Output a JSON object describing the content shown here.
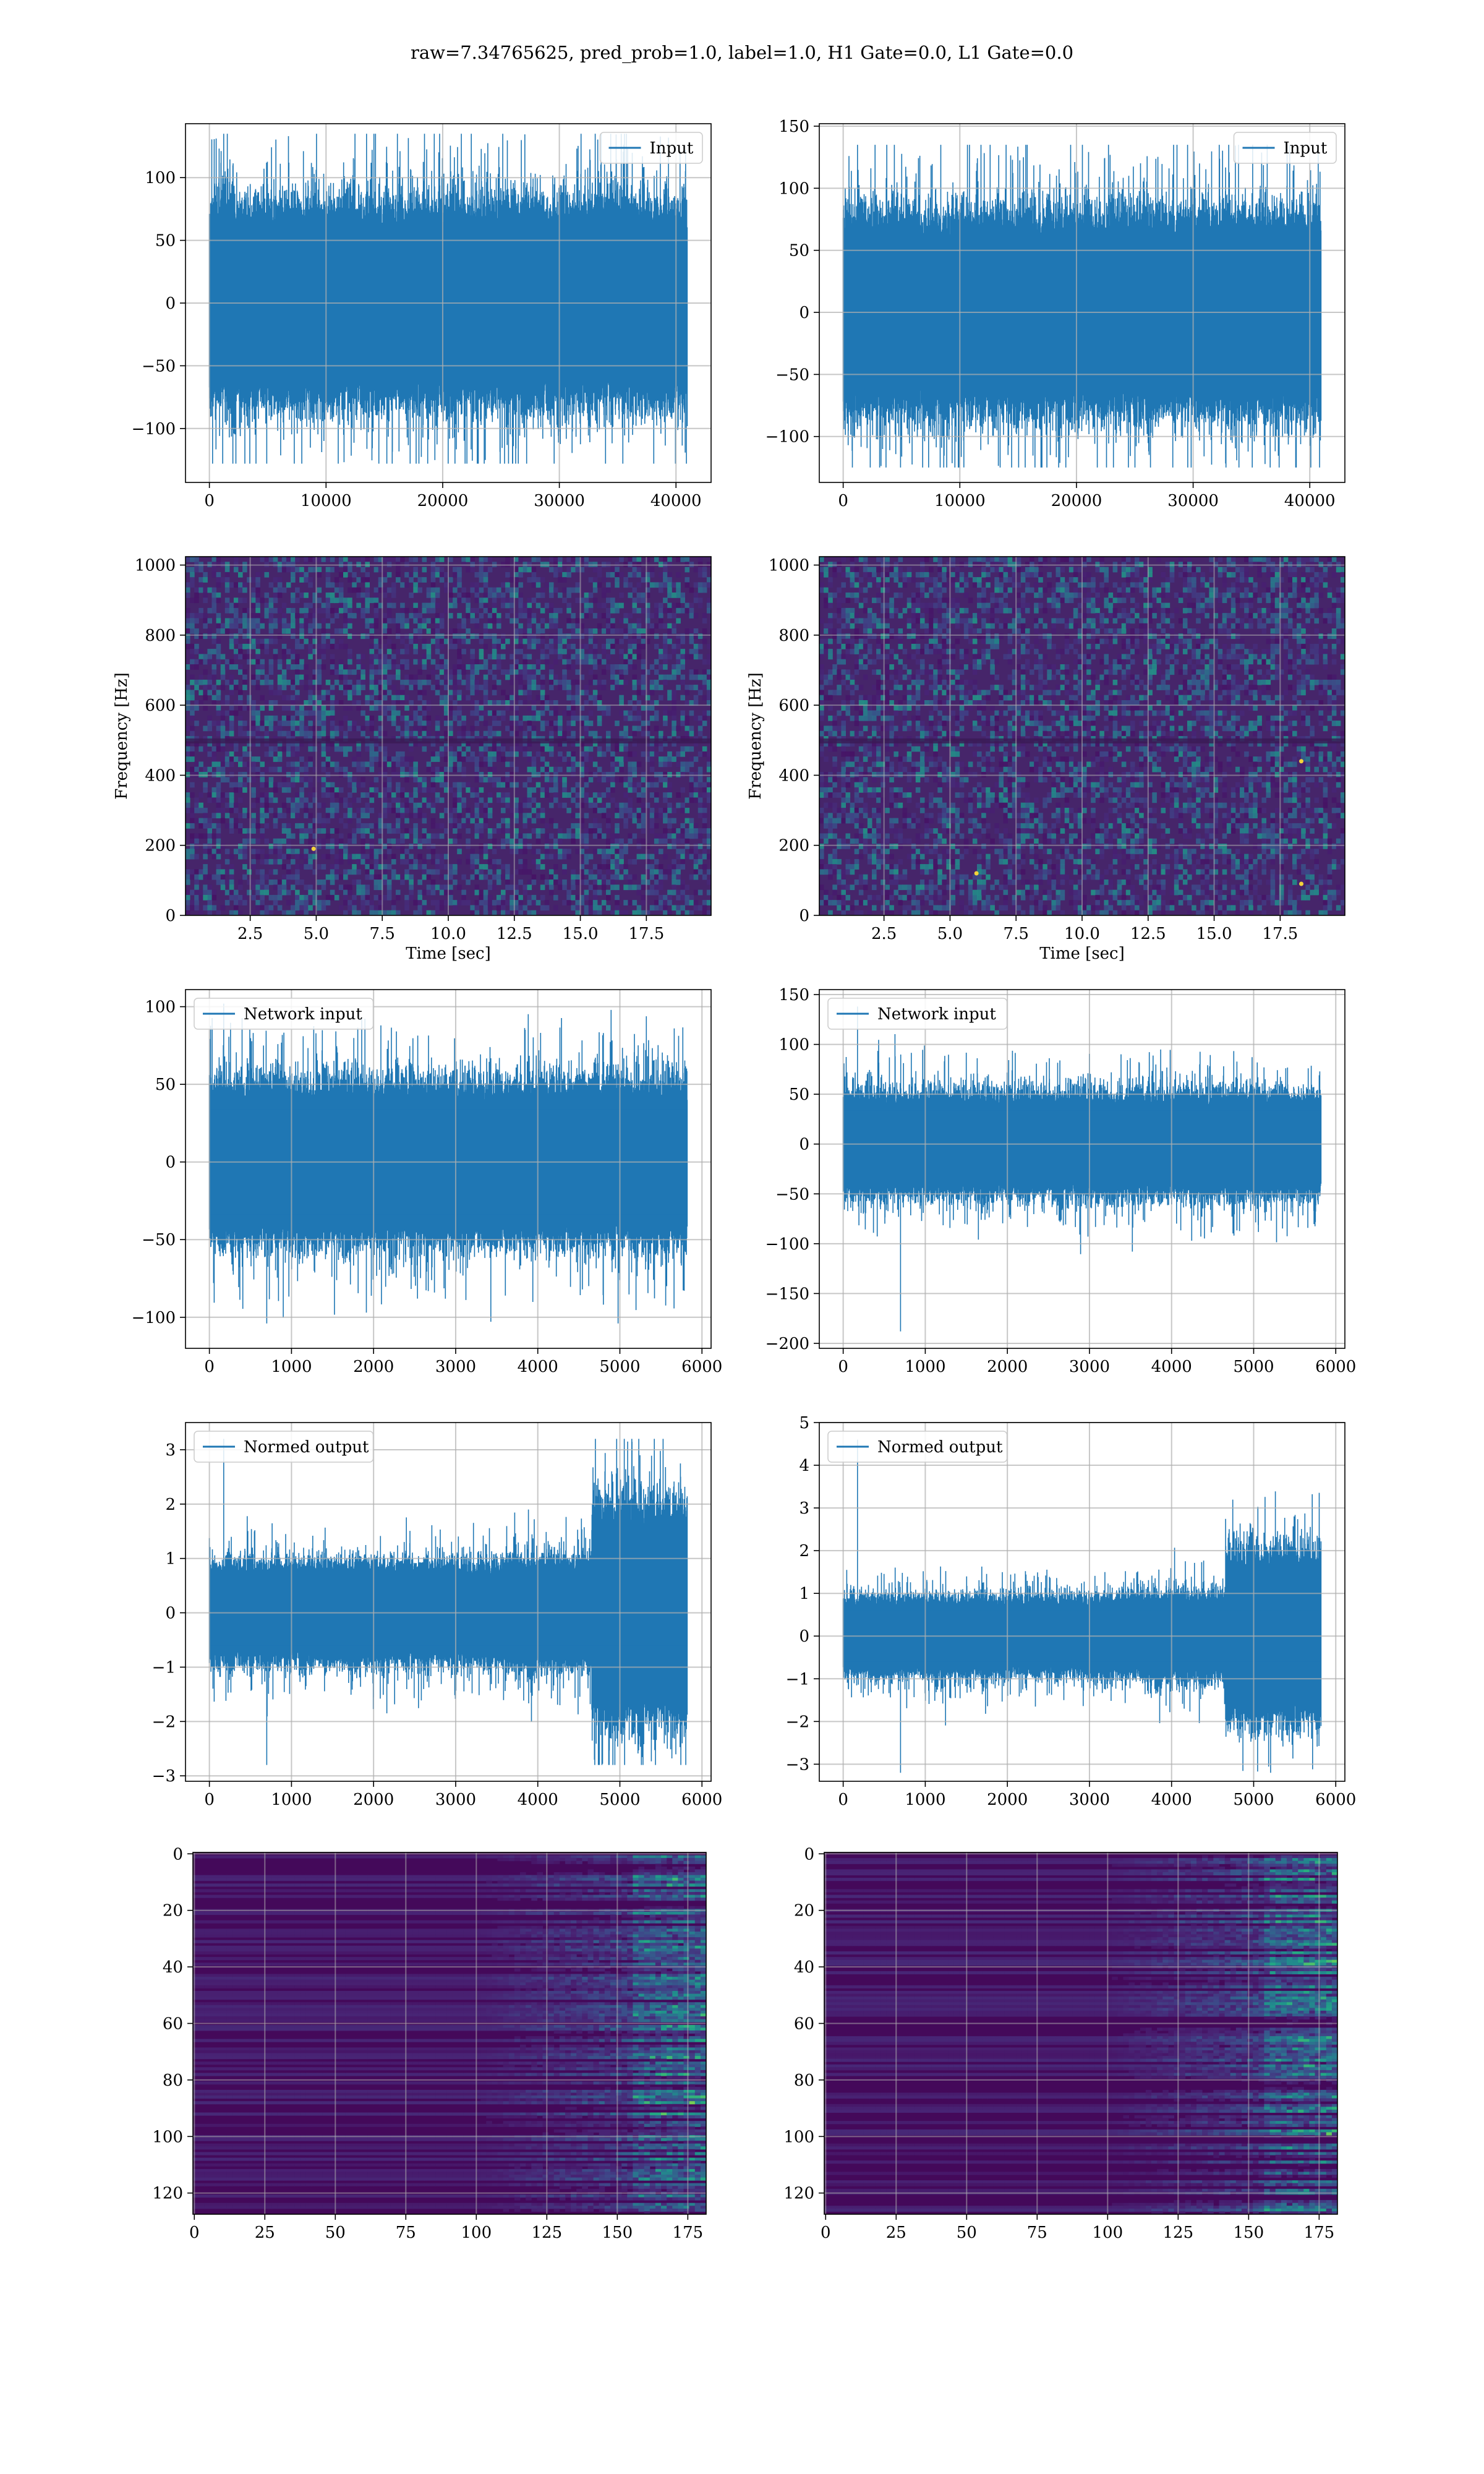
{
  "figure": {
    "title": "raw=7.34765625, pred_prob=1.0, label=1.0, H1 Gate=0.0, L1 Gate=0.0"
  },
  "chart_data": [
    {
      "id": "input-h1",
      "type": "line",
      "title": "",
      "xlabel": "",
      "ylabel": "",
      "series": [
        {
          "name": "Input",
          "color": "#1f77b4",
          "n": 40960,
          "amplitude_typical": 70,
          "peak_max": 135,
          "peak_min": -128
        }
      ],
      "xlim": [
        -2048,
        43008
      ],
      "ylim": [
        -143,
        143
      ],
      "xticks": [
        0,
        10000,
        20000,
        30000,
        40000
      ],
      "xtick_labels": [
        "0",
        "10000",
        "20000",
        "30000",
        "40000"
      ],
      "yticks": [
        -100,
        -50,
        0,
        50,
        100
      ],
      "ytick_labels": [
        "−100",
        "−50",
        "0",
        "50",
        "100"
      ],
      "legend": "top-right",
      "grid": true
    },
    {
      "id": "input-l1",
      "type": "line",
      "title": "",
      "xlabel": "",
      "ylabel": "",
      "series": [
        {
          "name": "Input",
          "color": "#1f77b4",
          "n": 40960,
          "amplitude_typical": 70,
          "peak_max": 135,
          "peak_min": -125
        }
      ],
      "xlim": [
        -2048,
        43008
      ],
      "ylim": [
        -137,
        152
      ],
      "xticks": [
        0,
        10000,
        20000,
        30000,
        40000
      ],
      "xtick_labels": [
        "0",
        "10000",
        "20000",
        "30000",
        "40000"
      ],
      "yticks": [
        -100,
        -50,
        0,
        50,
        100,
        150
      ],
      "ytick_labels": [
        "−100",
        "−50",
        "0",
        "50",
        "100",
        "150"
      ],
      "legend": "top-right",
      "grid": true
    },
    {
      "id": "spectrogram-h1",
      "type": "heatmap",
      "title": "",
      "xlabel": "Time [sec]",
      "ylabel": "Frequency [Hz]",
      "colormap": "viridis",
      "xlim": [
        0.05,
        19.95
      ],
      "ylim": [
        0,
        1024
      ],
      "xticks": [
        2.5,
        5,
        7.5,
        10,
        12.5,
        15,
        17.5
      ],
      "xtick_labels": [
        "2.5",
        "5.0",
        "7.5",
        "10.0",
        "12.5",
        "15.0",
        "17.5"
      ],
      "yticks": [
        0,
        200,
        400,
        600,
        800,
        1000
      ],
      "ytick_labels": [
        "0",
        "200",
        "400",
        "600",
        "800",
        "1000"
      ],
      "grid": true
    },
    {
      "id": "spectrogram-l1",
      "type": "heatmap",
      "title": "",
      "xlabel": "Time [sec]",
      "ylabel": "Frequency [Hz]",
      "colormap": "viridis",
      "xlim": [
        0.05,
        19.95
      ],
      "ylim": [
        0,
        1024
      ],
      "xticks": [
        2.5,
        5,
        7.5,
        10,
        12.5,
        15,
        17.5
      ],
      "xtick_labels": [
        "2.5",
        "5.0",
        "7.5",
        "10.0",
        "12.5",
        "15.0",
        "17.5"
      ],
      "yticks": [
        0,
        200,
        400,
        600,
        800,
        1000
      ],
      "ytick_labels": [
        "0",
        "200",
        "400",
        "600",
        "800",
        "1000"
      ],
      "grid": true
    },
    {
      "id": "network-input-h1",
      "type": "line",
      "title": "",
      "xlabel": "",
      "ylabel": "",
      "series": [
        {
          "name": "Network input",
          "color": "#1f77b4",
          "n": 5820,
          "amplitude_typical": 45,
          "peak_max": 102,
          "peak_min": -104
        }
      ],
      "xlim": [
        -291,
        6111
      ],
      "ylim": [
        -120,
        111
      ],
      "xticks": [
        0,
        1000,
        2000,
        3000,
        4000,
        5000,
        6000
      ],
      "xtick_labels": [
        "0",
        "1000",
        "2000",
        "3000",
        "4000",
        "5000",
        "6000"
      ],
      "yticks": [
        -100,
        -50,
        0,
        50,
        100
      ],
      "ytick_labels": [
        "−100",
        "−50",
        "0",
        "50",
        "100"
      ],
      "legend": "top-left",
      "grid": true
    },
    {
      "id": "network-input-l1",
      "type": "line",
      "title": "",
      "xlabel": "",
      "ylabel": "",
      "series": [
        {
          "name": "Network input",
          "color": "#1f77b4",
          "n": 5820,
          "amplitude_typical": 45,
          "peak_max": 138,
          "peak_min": -188
        }
      ],
      "xlim": [
        -291,
        6111
      ],
      "ylim": [
        -205,
        155
      ],
      "xticks": [
        0,
        1000,
        2000,
        3000,
        4000,
        5000,
        6000
      ],
      "xtick_labels": [
        "0",
        "1000",
        "2000",
        "3000",
        "4000",
        "5000",
        "6000"
      ],
      "yticks": [
        -200,
        -150,
        -100,
        -50,
        0,
        50,
        100,
        150
      ],
      "ytick_labels": [
        "−200",
        "−150",
        "−100",
        "−50",
        "0",
        "50",
        "100",
        "150"
      ],
      "legend": "top-left",
      "grid": true
    },
    {
      "id": "normed-output-h1",
      "type": "line",
      "title": "",
      "xlabel": "",
      "ylabel": "",
      "series": [
        {
          "name": "Normed output",
          "color": "#1f77b4",
          "n": 5820,
          "amplitude_typical": 0.8,
          "peak_max": 3.2,
          "peak_min": -2.8
        }
      ],
      "xlim": [
        -291,
        6111
      ],
      "ylim": [
        -3.1,
        3.5
      ],
      "xticks": [
        0,
        1000,
        2000,
        3000,
        4000,
        5000,
        6000
      ],
      "xtick_labels": [
        "0",
        "1000",
        "2000",
        "3000",
        "4000",
        "5000",
        "6000"
      ],
      "yticks": [
        -3,
        -2,
        -1,
        0,
        1,
        2,
        3
      ],
      "ytick_labels": [
        "−3",
        "−2",
        "−1",
        "0",
        "1",
        "2",
        "3"
      ],
      "legend": "top-left",
      "grid": true
    },
    {
      "id": "normed-output-l1",
      "type": "line",
      "title": "",
      "xlabel": "",
      "ylabel": "",
      "series": [
        {
          "name": "Normed output",
          "color": "#1f77b4",
          "n": 5820,
          "amplitude_typical": 0.8,
          "peak_max": 4.6,
          "peak_min": -3.2
        }
      ],
      "xlim": [
        -291,
        6111
      ],
      "ylim": [
        -3.4,
        5.0
      ],
      "xticks": [
        0,
        1000,
        2000,
        3000,
        4000,
        5000,
        6000
      ],
      "xtick_labels": [
        "0",
        "1000",
        "2000",
        "3000",
        "4000",
        "5000",
        "6000"
      ],
      "yticks": [
        -3,
        -2,
        -1,
        0,
        1,
        2,
        3,
        4,
        5
      ],
      "ytick_labels": [
        "−3",
        "−2",
        "−1",
        "0",
        "1",
        "2",
        "3",
        "4",
        "5"
      ],
      "legend": "top-left",
      "grid": true
    },
    {
      "id": "feature-map-h1",
      "type": "heatmap",
      "title": "",
      "xlabel": "",
      "ylabel": "",
      "colormap": "viridis",
      "xlim": [
        -0.5,
        181.5
      ],
      "ylim": [
        127.5,
        -0.5
      ],
      "shape": [
        128,
        182
      ],
      "xticks": [
        0,
        25,
        50,
        75,
        100,
        125,
        150,
        175
      ],
      "xtick_labels": [
        "0",
        "25",
        "50",
        "75",
        "100",
        "125",
        "150",
        "175"
      ],
      "yticks": [
        0,
        20,
        40,
        60,
        80,
        100,
        120
      ],
      "ytick_labels": [
        "0",
        "20",
        "40",
        "60",
        "80",
        "100",
        "120"
      ],
      "grid": true
    },
    {
      "id": "feature-map-l1",
      "type": "heatmap",
      "title": "",
      "xlabel": "",
      "ylabel": "",
      "colormap": "viridis",
      "xlim": [
        -0.5,
        181.5
      ],
      "ylim": [
        127.5,
        -0.5
      ],
      "shape": [
        128,
        182
      ],
      "xticks": [
        0,
        25,
        50,
        75,
        100,
        125,
        150,
        175
      ],
      "xtick_labels": [
        "0",
        "25",
        "50",
        "75",
        "100",
        "125",
        "150",
        "175"
      ],
      "yticks": [
        0,
        20,
        40,
        60,
        80,
        100,
        120
      ],
      "ytick_labels": [
        "0",
        "20",
        "40",
        "60",
        "80",
        "100",
        "120"
      ],
      "grid": true
    }
  ]
}
